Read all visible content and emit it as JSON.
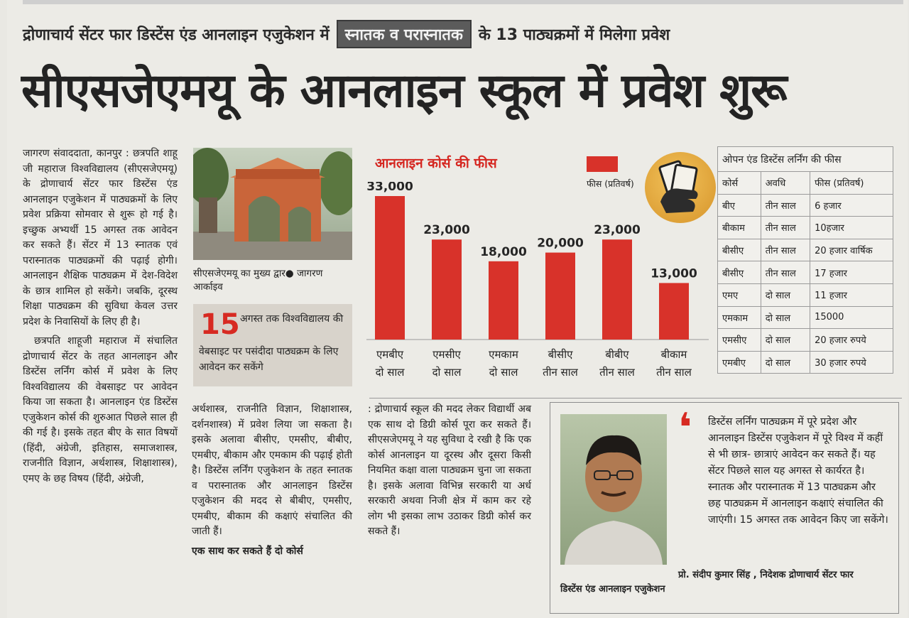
{
  "kicker": {
    "before": "द्रोणाचार्य सेंटर फार डिस्टेंस एंड आनलाइन एजुकेशन में",
    "highlight": "स्नातक व परास्नातक",
    "after": "के 13 पाठ्यक्रमों में मिलेगा प्रवेश"
  },
  "headline": "सीएसजेएमयू के आनलाइन स्कूल में प्रवेश शुरू",
  "columns": {
    "col1": [
      "जागरण संवाददाता, कानपुर : छत्रपति शाहू जी महाराज विश्वविद्यालय (सीएसजेएमयू) के द्रोणाचार्य सेंटर फार डिस्टेंस एंड आनलाइन एजुकेशन में पाठ्यक्रमों के लिए प्रवेश प्रक्रिया सोमवार से शुरू हो गई है। इच्छुक अभ्यर्थी 15 अगस्त तक आवेदन कर सकते हैं। सेंटर में 13 स्नातक एवं परास्नातक पाठ्यक्रमों की पढ़ाई होगी। आनलाइन शैक्षिक पाठ्यक्रम में देश-विदेश के छात्र शामिल हो सकेंगे। जबकि, दूरस्थ शिक्षा पाठ्यक्रम की सुविधा केवल उत्तर प्रदेश के निवासियों के लिए ही है।",
      "छत्रपति शाहूजी महाराज में संचालित द्रोणाचार्य सेंटर के तहत आनलाइन और डिस्टेंस लर्निंग कोर्स में प्रवेश के लिए विश्वविद्यालय की वेबसाइट पर आवेदन किया जा सकता है। आनलाइन एंड डिस्टेंस एजुकेशन कोर्स की शुरुआत पिछले साल ही की गई है। इसके तहत बीए के सात विषयों (हिंदी, अंग्रेजी, इतिहास, समाजशास्त्र, राजनीति विज्ञान, अर्थशास्त्र, शिक्षाशास्त्र), एमए के छह विषय (हिंदी, अंग्रेजी,"
    ],
    "col2": "अर्थशास्त्र, राजनीति विज्ञान, शिक्षाशास्त्र, दर्शनशास्त्र) में प्रवेश लिया जा सकता है। इसके अलावा बीसीए, एमसीए, बीबीए, एमबीए, बीकाम और एमकाम की पढ़ाई होती है। डिस्टेंस लर्निंग एजुकेशन के तहत स्नातक व परास्नातक और आनलाइन डिस्टेंस एजुकेशन की मदद से बीबीए, एमसीए, एमबीए, बीकाम की कक्षाएं संचालित की जाती हैं।",
    "col2_tail": "एक साथ कर सकते हैं दो कोर्स",
    "col3": ": द्रोणाचार्य स्कूल की मदद लेकर विद्यार्थी अब एक साथ दो डिग्री कोर्स पूरा कर सकते हैं। सीएसजेएमयू ने यह सुविधा दे रखी है कि एक कोर्स आनलाइन या दूरस्थ और दूसरा किसी नियमित कक्षा वाला पाठ्यक्रम चुना जा सकता है। इसके अलावा विभिन्न सरकारी या अर्ध सरकारी अथवा निजी क्षेत्र में काम कर रहे लोग भी इसका लाभ उठाकर डिग्री कोर्स कर सकते हैं।"
  },
  "photo1": {
    "caption": "सीएसजेएमयू का मुख्य द्वार",
    "credit": "जागरण आर्काइव"
  },
  "factbox": {
    "number": "15",
    "line1": "अगस्त तक विश्वविद्यालय की",
    "line2": "वेबसाइट पर पसंदीदा पाठ्यक्रम के लिए आवेदन कर सकेंगे"
  },
  "chart_data": {
    "type": "bar",
    "title": "आनलाइन कोर्स की फीस",
    "legend": "फीस (प्रतिवर्ष)",
    "categories": [
      [
        "एमबीए",
        "दो साल"
      ],
      [
        "एमसीए",
        "दो साल"
      ],
      [
        "एमकाम",
        "दो साल"
      ],
      [
        "बीसीए",
        "तीन साल"
      ],
      [
        "बीबीए",
        "तीन साल"
      ],
      [
        "बीकाम",
        "तीन साल"
      ]
    ],
    "values": [
      33000,
      23000,
      18000,
      20000,
      23000,
      13000
    ],
    "value_labels": [
      "33,000",
      "23,000",
      "18,000",
      "20,000",
      "23,000",
      "13,000"
    ],
    "ylim": [
      0,
      33000
    ],
    "color": "#d8322a"
  },
  "fee_table": {
    "title": "ओपन एंड डिस्टेंस लर्निंग की फीस",
    "headers": [
      "कोर्स",
      "अवधि",
      "फीस (प्रतिवर्ष)"
    ],
    "rows": [
      [
        "बीए",
        "तीन साल",
        "6 हजार"
      ],
      [
        "बीकाम",
        "तीन साल",
        "10हजार"
      ],
      [
        "बीसीए",
        "तीन साल",
        "20 हजार वार्षिक"
      ],
      [
        "बीसीए",
        "तीन साल",
        "17 हजार"
      ],
      [
        "एमए",
        "दो साल",
        "11 हजार"
      ],
      [
        "एमकाम",
        "दो साल",
        "15000"
      ],
      [
        "एमसीए",
        "दो साल",
        "20 हजार रुपये"
      ],
      [
        "एमबीए",
        "दो साल",
        "30 हजार रुपये"
      ]
    ]
  },
  "quote": {
    "text": "डिस्टेंस लर्निंग पाठ्यक्रम में पूरे प्रदेश और आनलाइन डिस्टेंस एजुकेशन में पूरे विश्व में कहीं से भी छात्र- छात्राएं आवेदन कर सकते हैं। यह सेंटर पिछले साल यह अगस्त से कार्यरत है। स्नातक और परास्नातक में 13 पाठ्यक्रम और छह पाठ्यक्रम में आनलाइन कक्षाएं संचालित की जाएंगी। 15 अगस्त तक आवेदन किए जा सकेंगे।",
    "author": "प्रो. संदीप कुमार सिंह , निदेशक द्रोणाचार्य सेंटर फार",
    "author_line2": "डिस्टेंस एंड आनलाइन एजुकेशन"
  }
}
